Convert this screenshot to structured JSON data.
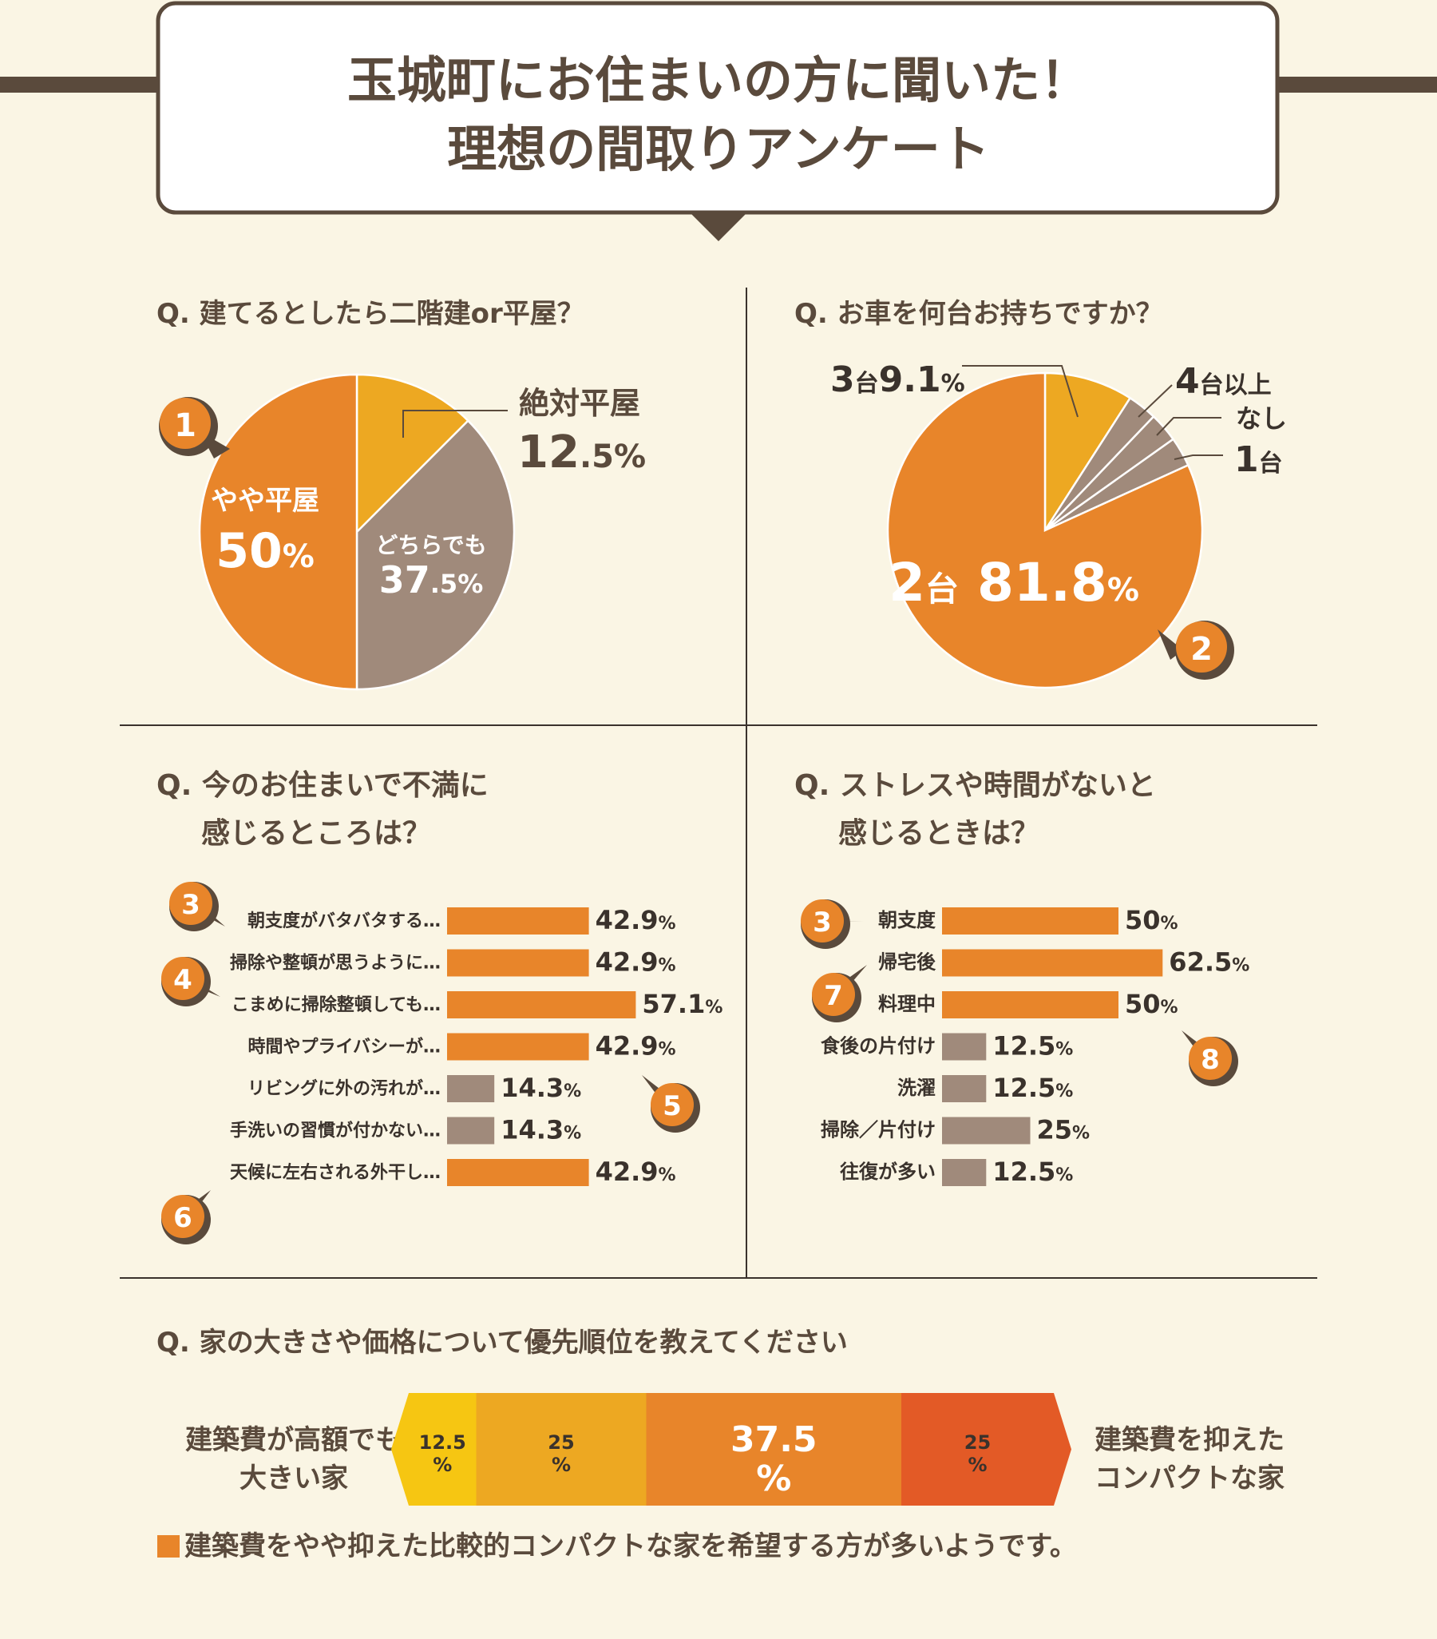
{
  "colors": {
    "orange": "#e8852a",
    "yellow_orange": "#eda822",
    "taupe": "#a08a7b",
    "dark_brown": "#5a4a3c",
    "background": "#faf5e4",
    "band_yellow": "#f6c612",
    "band_red": "#e35a26"
  },
  "header": {
    "title_line1": "玉城町にお住まいの方に聞いた！",
    "title_line2": "理想の間取りアンケート"
  },
  "chart_data": [
    {
      "type": "pie",
      "title": "Q. 建てるとしたら二階建or平屋？",
      "slices": [
        {
          "label": "絶対平屋",
          "value": 12.5,
          "value_label": "12.5%",
          "color": "#eda822"
        },
        {
          "label": "どちらでも",
          "value": 37.5,
          "value_label": "37.5%",
          "color": "#a08a7b"
        },
        {
          "label": "やや平屋",
          "value": 50,
          "value_label": "50%",
          "color": "#e8852a"
        }
      ],
      "badge": "1"
    },
    {
      "type": "pie",
      "title": "Q. お車を何台お持ちですか？",
      "slices": [
        {
          "label": "3台",
          "value": 9.1,
          "value_label": "9.1%",
          "color": "#eda822"
        },
        {
          "label": "4台以上",
          "value": 3.03,
          "color": "#a08a7b"
        },
        {
          "label": "なし",
          "value": 3.03,
          "color": "#a08a7b"
        },
        {
          "label": "1台",
          "value": 3.04,
          "color": "#a08a7b"
        },
        {
          "label": "2台",
          "value": 81.8,
          "value_label": "81.8%",
          "color": "#e8852a"
        }
      ],
      "badge": "2"
    },
    {
      "type": "bar",
      "title": [
        "Q. 今のお住まいで不満に",
        "感じるところは？"
      ],
      "categories": [
        "朝支度がバタバタする…",
        "掃除や整頓が思うように…",
        "こまめに掃除整頓しても…",
        "時間やプライバシーが…",
        "リビングに外の汚れが…",
        "手洗いの習慣が付かない…",
        "天候に左右される外干し…"
      ],
      "values": [
        42.9,
        42.9,
        57.1,
        42.9,
        14.3,
        14.3,
        42.9
      ],
      "value_labels": [
        "42.9",
        "42.9",
        "57.1",
        "42.9",
        "14.3",
        "14.3",
        "42.9"
      ],
      "colors": [
        "#e8852a",
        "#e8852a",
        "#e8852a",
        "#e8852a",
        "#a08a7b",
        "#a08a7b",
        "#e8852a"
      ],
      "unit": "%",
      "badges": [
        "3",
        "4",
        "5",
        "6"
      ]
    },
    {
      "type": "bar",
      "title": [
        "Q. ストレスや時間がないと",
        "感じるときは？"
      ],
      "categories": [
        "朝支度",
        "帰宅後",
        "料理中",
        "食後の片付け",
        "洗濯",
        "掃除／片付け",
        "往復が多い"
      ],
      "values": [
        50,
        62.5,
        50,
        12.5,
        12.5,
        25,
        12.5
      ],
      "value_labels": [
        "50",
        "62.5",
        "50",
        "12.5",
        "12.5",
        "25",
        "12.5"
      ],
      "colors": [
        "#e8852a",
        "#e8852a",
        "#e8852a",
        "#a08a7b",
        "#a08a7b",
        "#a08a7b",
        "#a08a7b"
      ],
      "unit": "%",
      "badges": [
        "3",
        "7",
        "8"
      ]
    },
    {
      "type": "bar",
      "title": "Q. 家の大きさや価格について優先順位を教えてください",
      "left_label": [
        "建築費が高額でも",
        "大きい家"
      ],
      "right_label": [
        "建築費を抑えた",
        "コンパクトな家"
      ],
      "segments": [
        {
          "value": 12.5,
          "label": "12.5",
          "color": "#f6c612"
        },
        {
          "value": 25,
          "label": "25",
          "color": "#eda822"
        },
        {
          "value": 37.5,
          "label": "37.5",
          "color": "#e8852a"
        },
        {
          "value": 25,
          "label": "25",
          "color": "#e35a26"
        }
      ],
      "unit": "%"
    }
  ],
  "footer_note": "建築費をやや抑えた比較的コンパクトな家を希望する方が多いようです。"
}
